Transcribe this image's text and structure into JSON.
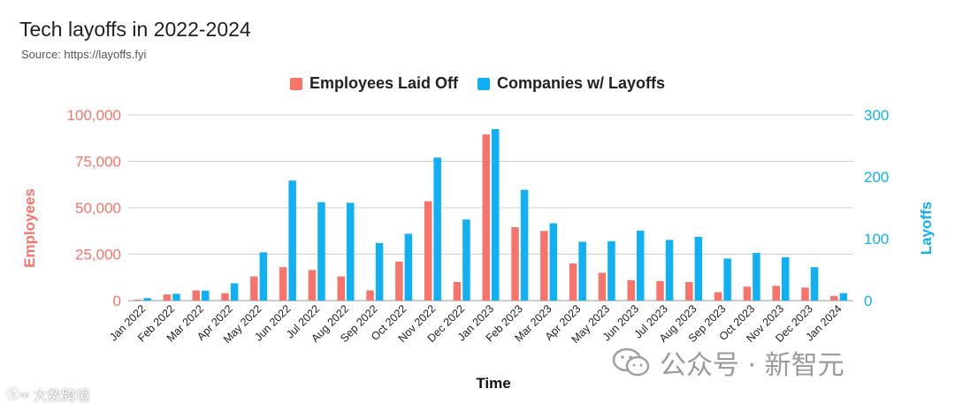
{
  "header": {
    "title": "Tech layoffs in 2022-2024",
    "source": "Source: https://layoffs.fyi"
  },
  "colors": {
    "employees": "#F8746B",
    "companies": "#10B1F2",
    "grid": "#d0d0d0"
  },
  "chart_data": {
    "type": "bar",
    "title": "Tech layoffs in 2022-2024",
    "xlabel": "Time",
    "ylabel": "Employees",
    "y2label": "Layoffs",
    "ylim": [
      0,
      100000
    ],
    "y2lim": [
      0,
      300
    ],
    "yticks": [
      0,
      25000,
      50000,
      75000,
      100000
    ],
    "ytick_labels": [
      "0",
      "25,000",
      "50,000",
      "75,000",
      "100,000"
    ],
    "y2ticks": [
      0,
      100,
      200,
      300
    ],
    "y2tick_labels": [
      "0",
      "100",
      "200",
      "300"
    ],
    "legend_position": "top-center",
    "categories": [
      "Jan 2022",
      "Feb 2022",
      "Mar 2022",
      "Apr 2022",
      "May 2022",
      "Jun 2022",
      "Jul 2022",
      "Aug 2022",
      "Sep 2022",
      "Oct 2022",
      "Nov 2022",
      "Dec 2022",
      "Jan 2023",
      "Feb 2023",
      "Mar 2023",
      "Apr 2023",
      "May 2023",
      "Jun 2023",
      "Jul 2023",
      "Aug 2023",
      "Sep 2023",
      "Oct 2023",
      "Nov 2023",
      "Dec 2023",
      "Jan 2024"
    ],
    "series": [
      {
        "name": "Employees Laid Off",
        "axis": "left",
        "values": [
          500,
          3300,
          5500,
          4000,
          13000,
          18000,
          16500,
          13000,
          5500,
          21000,
          53500,
          10000,
          89500,
          39500,
          37500,
          20000,
          15000,
          11000,
          10500,
          10000,
          4500,
          7500,
          8000,
          7000,
          2500
        ]
      },
      {
        "name": "Companies w/ Layoffs",
        "axis": "right",
        "values": [
          4,
          11,
          16,
          28,
          78,
          194,
          159,
          158,
          93,
          108,
          231,
          131,
          277,
          179,
          125,
          95,
          96,
          113,
          98,
          103,
          68,
          77,
          70,
          54,
          12
        ]
      }
    ]
  },
  "watermark": {
    "right": "公众号 · 新智元",
    "left": "大数跨境"
  }
}
